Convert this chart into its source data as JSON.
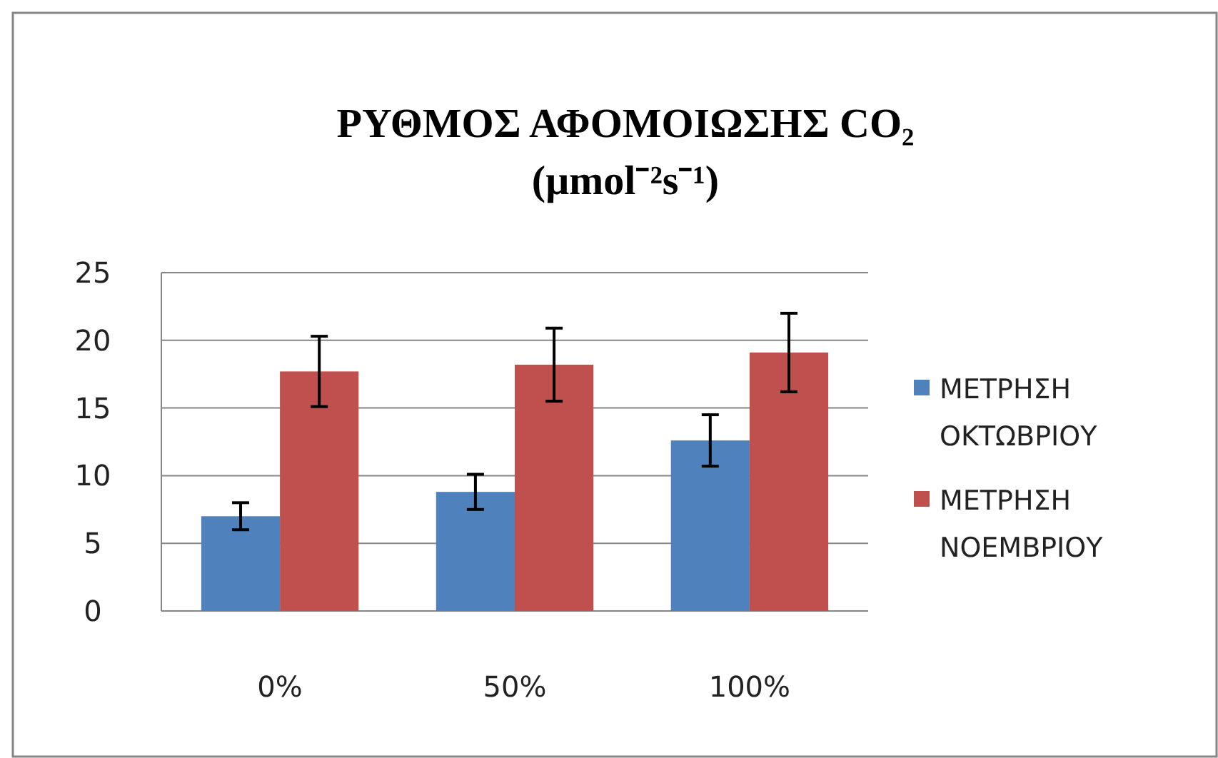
{
  "chart_data": {
    "type": "bar",
    "title": "ΡΥΘΜΟΣ  ΑΦΟΜΟΙΩΣΗΣ CO₂ (μmol⁻²s⁻¹)",
    "categories": [
      "0%",
      "50%",
      "100%"
    ],
    "series": [
      {
        "name": "ΜΕΤΡΗΣΗ ΟΚΤΩΒΡΙΟΥ",
        "color": "#4f81bd",
        "values": [
          7.0,
          8.8,
          12.6
        ],
        "errors": [
          1.0,
          1.3,
          1.9
        ]
      },
      {
        "name": "ΜΕΤΡΗΣΗ ΝΟΕΜΒΡΙΟΥ",
        "color": "#c0504d",
        "values": [
          17.7,
          18.2,
          19.1
        ],
        "errors": [
          2.6,
          2.7,
          2.9
        ]
      }
    ],
    "ylim": [
      0,
      25
    ],
    "yticks": [
      0,
      5,
      10,
      15,
      20,
      25
    ],
    "grid": "y",
    "legend": "right"
  }
}
